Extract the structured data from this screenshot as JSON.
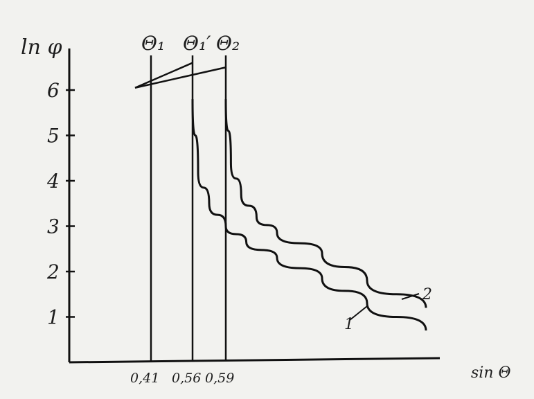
{
  "chart_data": {
    "type": "line",
    "title": "",
    "xlabel": "sin Θ",
    "ylabel": "ln φ",
    "xlim": [
      0.2,
      0.75
    ],
    "ylim": [
      0,
      7
    ],
    "y_ticks": [
      "1",
      "2",
      "3",
      "4",
      "5",
      "6"
    ],
    "x_ticks": [
      {
        "value": 0.41,
        "label": "0,41"
      },
      {
        "value": 0.56,
        "label": "0,56"
      },
      {
        "value": 0.59,
        "label": "0,59"
      }
    ],
    "vertical_markers": [
      {
        "x": 0.41,
        "label": "Θ₁"
      },
      {
        "x": 0.56,
        "label": "Θ₁′"
      },
      {
        "x": 0.59,
        "label": "Θ₂"
      }
    ],
    "series": [
      {
        "name": "1",
        "x": [
          0.56,
          0.565,
          0.575,
          0.59,
          0.61,
          0.64,
          0.68,
          0.72,
          0.75
        ],
        "y": [
          5.8,
          4.2,
          3.5,
          3.0,
          2.65,
          2.3,
          1.85,
          1.3,
          0.7
        ]
      },
      {
        "name": "2",
        "x": [
          0.59,
          0.595,
          0.605,
          0.62,
          0.64,
          0.68,
          0.72,
          0.75
        ],
        "y": [
          5.8,
          4.4,
          3.7,
          3.2,
          2.85,
          2.4,
          1.8,
          1.2
        ]
      }
    ],
    "annotations": [
      {
        "text": "1",
        "series": "1"
      },
      {
        "text": "2",
        "series": "2"
      }
    ],
    "extrapolation_lines": [
      {
        "x": [
          0.35,
          0.56
        ],
        "y": [
          6.05,
          6.6
        ]
      },
      {
        "x": [
          0.35,
          0.59
        ],
        "y": [
          6.05,
          6.5
        ]
      }
    ],
    "grid": false,
    "legend": "none"
  },
  "colors": {
    "ink": "#111111",
    "paper": "#f2f2ef"
  }
}
